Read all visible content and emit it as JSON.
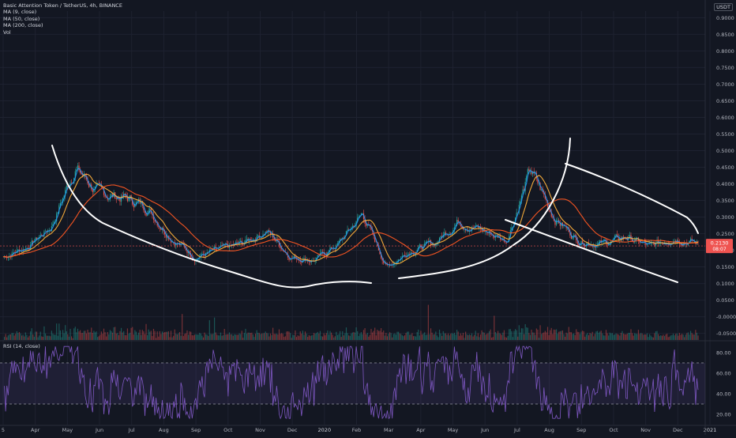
{
  "legend": {
    "title": "Basic Attention Token / TetherUS, 4h, BINANCE",
    "ma9": "MA (9, close)",
    "ma50": "MA (50, close)",
    "ma200": "MA (200, close)",
    "vol": "Vol",
    "rsi": "RSI (14, close)"
  },
  "unit": "USDT",
  "colors": {
    "background": "#131722",
    "grid": "#1e2230",
    "up": "#26a69a",
    "down": "#ef5350",
    "ma9": "#2196f3",
    "ma50": "#ffb13b",
    "ma200": "#ff5722",
    "rsi": "#7e57c2",
    "rsi_band": "#7e57c2",
    "drawing": "#ffffff",
    "price_badge": "#ef5350"
  },
  "last_price": {
    "value": "0.2130",
    "countdown": "08:07"
  },
  "chart_data": [
    {
      "type": "candlestick",
      "title": "Basic Attention Token / TetherUS, 4h, BINANCE",
      "x_ticks": [
        "5",
        "Apr",
        "May",
        "Jun",
        "Jul",
        "Aug",
        "Sep",
        "Oct",
        "Nov",
        "Dec",
        "2020",
        "Feb",
        "Mar",
        "Apr",
        "May",
        "Jun",
        "Jul",
        "Aug",
        "Sep",
        "Oct",
        "Nov",
        "Dec",
        "2021"
      ],
      "y_ticks": [
        "0.9000",
        "0.8500",
        "0.8000",
        "0.7500",
        "0.7000",
        "0.6500",
        "0.6000",
        "0.5500",
        "0.5000",
        "0.4500",
        "0.4000",
        "0.3500",
        "0.3000",
        "0.2500",
        "0.2000",
        "0.1500",
        "0.1000",
        "0.0500",
        "-0.0000",
        "-0.0500"
      ],
      "ylim": [
        -0.07,
        0.92
      ],
      "price_path": [
        [
          0,
          0.18
        ],
        [
          1,
          0.21
        ],
        [
          2,
          0.27
        ],
        [
          3,
          0.45
        ],
        [
          4,
          0.37
        ],
        [
          5,
          0.36
        ],
        [
          6,
          0.33
        ],
        [
          7,
          0.24
        ],
        [
          8,
          0.18
        ],
        [
          9,
          0.2
        ],
        [
          10,
          0.22
        ],
        [
          11,
          0.26
        ],
        [
          12,
          0.18
        ],
        [
          13,
          0.17
        ],
        [
          14,
          0.22
        ],
        [
          15,
          0.31
        ],
        [
          16,
          0.15
        ],
        [
          17,
          0.2
        ],
        [
          18,
          0.22
        ],
        [
          19,
          0.29
        ],
        [
          20,
          0.26
        ],
        [
          21,
          0.23
        ],
        [
          22,
          0.44
        ],
        [
          23,
          0.3
        ],
        [
          24,
          0.23
        ],
        [
          25,
          0.22
        ],
        [
          26,
          0.24
        ],
        [
          27,
          0.21
        ],
        [
          28,
          0.24
        ],
        [
          29,
          0.22
        ]
      ],
      "moving_averages": [
        {
          "name": "MA (9, close)",
          "color": "#2196f3"
        },
        {
          "name": "MA (50, close)",
          "color": "#ffb13b"
        },
        {
          "name": "MA (200, close)",
          "color": "#ff5722"
        }
      ],
      "volume": {
        "name": "Vol"
      }
    },
    {
      "type": "line",
      "title": "RSI (14, close)",
      "y_ticks": [
        "80.00",
        "60.00",
        "40.00",
        "20.00"
      ],
      "ylim": [
        10,
        90
      ],
      "bands": [
        30,
        70
      ]
    }
  ]
}
